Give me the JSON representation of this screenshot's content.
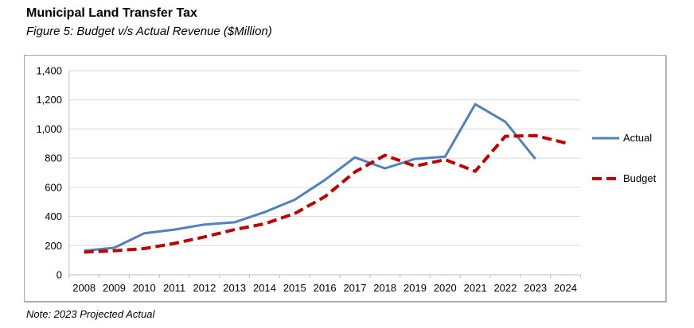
{
  "header": {
    "title": "Municipal Land Transfer Tax",
    "subtitle": "Figure 5: Budget v/s Actual Revenue ($Million)"
  },
  "note": "Note: 2023 Projected Actual",
  "legend": {
    "actual": "Actual",
    "budget": "Budget"
  },
  "colors": {
    "actual_line": "#4F81BD",
    "budget_line": "#C00000",
    "gridline": "#D9D9D9",
    "axis": "#BFBFBF",
    "frame_border": "#A6A6A6",
    "text": "#000000"
  },
  "chart_data": {
    "type": "line",
    "title": "Municipal Land Transfer Tax",
    "subtitle": "Figure 5: Budget v/s Actual Revenue ($Million)",
    "categories": [
      "2008",
      "2009",
      "2010",
      "2011",
      "2012",
      "2013",
      "2014",
      "2015",
      "2016",
      "2017",
      "2018",
      "2019",
      "2020",
      "2021",
      "2022",
      "2023",
      "2024"
    ],
    "series": [
      {
        "name": "Actual",
        "color": "#4F81BD",
        "style": "solid",
        "values": [
          165,
          185,
          285,
          310,
          345,
          360,
          430,
          515,
          650,
          805,
          730,
          795,
          810,
          1170,
          1050,
          795,
          null
        ]
      },
      {
        "name": "Budget",
        "color": "#C00000",
        "style": "dashed",
        "values": [
          155,
          165,
          180,
          215,
          260,
          310,
          350,
          420,
          535,
          705,
          820,
          745,
          790,
          710,
          950,
          955,
          905
        ]
      }
    ],
    "xlabel": "",
    "ylabel": "",
    "ylim": [
      0,
      1400
    ],
    "ytick_step": 200,
    "ytick_labels": [
      "0",
      "200",
      "400",
      "600",
      "800",
      "1,000",
      "1,200",
      "1,400"
    ],
    "grid": true,
    "legend_position": "right-inside",
    "note": "Note: 2023 Projected Actual"
  }
}
